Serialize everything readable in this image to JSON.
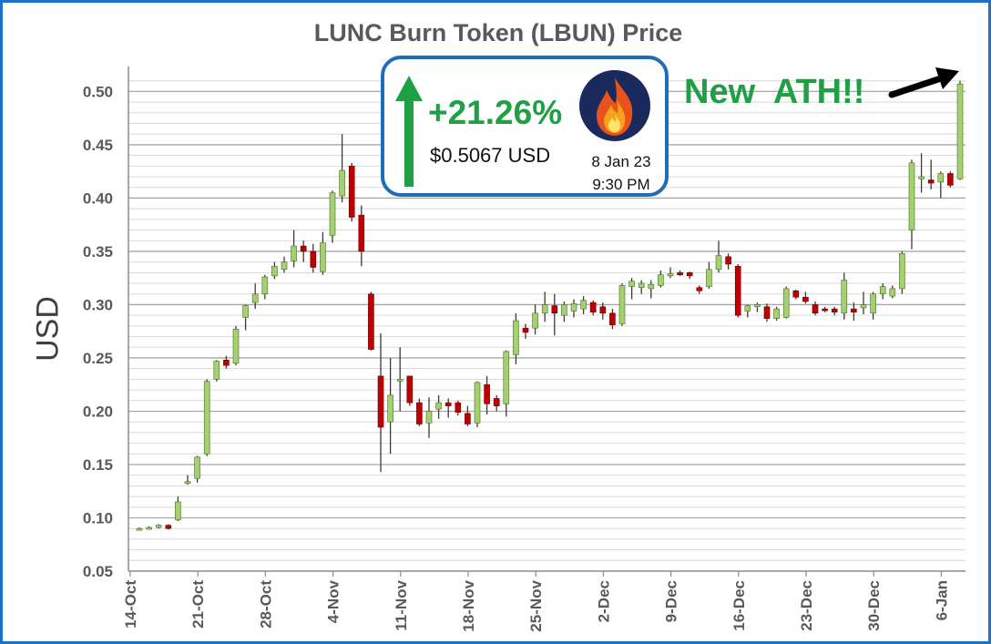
{
  "chart_data": {
    "type": "candlestick",
    "title": "LUNC Burn Token (LBUN) Price",
    "xlabel": "",
    "ylabel": "USD",
    "ylim": [
      0.05,
      0.52
    ],
    "grid": true,
    "yticks": [
      "0.05",
      "0.10",
      "0.15",
      "0.20",
      "0.25",
      "0.30",
      "0.35",
      "0.40",
      "0.45",
      "0.50"
    ],
    "xticks": [
      "14-Oct",
      "21-Oct",
      "28-Oct",
      "4-Nov",
      "11-Nov",
      "18-Nov",
      "25-Nov",
      "2-Dec",
      "9-Dec",
      "16-Dec",
      "23-Dec",
      "30-Dec",
      "6-Jan"
    ],
    "colors": {
      "up": "#a3d16e",
      "down": "#c00000",
      "wick": "#3a3a3a",
      "grid": "#c8c8c8"
    },
    "candles": [
      {
        "date": "15-Oct",
        "open": 0.09,
        "high": 0.091,
        "low": 0.089,
        "close": 0.09
      },
      {
        "date": "16-Oct",
        "open": 0.09,
        "high": 0.092,
        "low": 0.089,
        "close": 0.091
      },
      {
        "date": "17-Oct",
        "open": 0.091,
        "high": 0.094,
        "low": 0.09,
        "close": 0.093
      },
      {
        "date": "18-Oct",
        "open": 0.093,
        "high": 0.094,
        "low": 0.089,
        "close": 0.09
      },
      {
        "date": "19-Oct",
        "open": 0.098,
        "high": 0.12,
        "low": 0.097,
        "close": 0.115
      },
      {
        "date": "20-Oct",
        "open": 0.133,
        "high": 0.14,
        "low": 0.131,
        "close": 0.134
      },
      {
        "date": "21-Oct",
        "open": 0.137,
        "high": 0.158,
        "low": 0.133,
        "close": 0.157
      },
      {
        "date": "22-Oct",
        "open": 0.16,
        "high": 0.23,
        "low": 0.158,
        "close": 0.228
      },
      {
        "date": "23-Oct",
        "open": 0.23,
        "high": 0.248,
        "low": 0.228,
        "close": 0.247
      },
      {
        "date": "24-Oct",
        "open": 0.248,
        "high": 0.252,
        "low": 0.24,
        "close": 0.243
      },
      {
        "date": "25-Oct",
        "open": 0.245,
        "high": 0.28,
        "low": 0.243,
        "close": 0.277
      },
      {
        "date": "26-Oct",
        "open": 0.288,
        "high": 0.3,
        "low": 0.276,
        "close": 0.299
      },
      {
        "date": "27-Oct",
        "open": 0.302,
        "high": 0.32,
        "low": 0.296,
        "close": 0.31
      },
      {
        "date": "28-Oct",
        "open": 0.31,
        "high": 0.328,
        "low": 0.305,
        "close": 0.326
      },
      {
        "date": "29-Oct",
        "open": 0.327,
        "high": 0.34,
        "low": 0.324,
        "close": 0.336
      },
      {
        "date": "30-Oct",
        "open": 0.333,
        "high": 0.345,
        "low": 0.33,
        "close": 0.34
      },
      {
        "date": "31-Oct",
        "open": 0.341,
        "high": 0.37,
        "low": 0.335,
        "close": 0.355
      },
      {
        "date": "1-Nov",
        "open": 0.355,
        "high": 0.36,
        "low": 0.34,
        "close": 0.35
      },
      {
        "date": "2-Nov",
        "open": 0.35,
        "high": 0.357,
        "low": 0.33,
        "close": 0.335
      },
      {
        "date": "3-Nov",
        "open": 0.331,
        "high": 0.368,
        "low": 0.328,
        "close": 0.358
      },
      {
        "date": "4-Nov",
        "open": 0.365,
        "high": 0.407,
        "low": 0.358,
        "close": 0.405
      },
      {
        "date": "5-Nov",
        "open": 0.402,
        "high": 0.46,
        "low": 0.396,
        "close": 0.426
      },
      {
        "date": "6-Nov",
        "open": 0.43,
        "high": 0.433,
        "low": 0.378,
        "close": 0.382
      },
      {
        "date": "7-Nov",
        "open": 0.384,
        "high": 0.393,
        "low": 0.336,
        "close": 0.35
      },
      {
        "date": "8-Nov",
        "open": 0.31,
        "high": 0.312,
        "low": 0.257,
        "close": 0.258
      },
      {
        "date": "9-Nov",
        "open": 0.233,
        "high": 0.273,
        "low": 0.143,
        "close": 0.185
      },
      {
        "date": "10-Nov",
        "open": 0.19,
        "high": 0.25,
        "low": 0.16,
        "close": 0.215
      },
      {
        "date": "11-Nov",
        "open": 0.229,
        "high": 0.26,
        "low": 0.2,
        "close": 0.23
      },
      {
        "date": "12-Nov",
        "open": 0.233,
        "high": 0.233,
        "low": 0.205,
        "close": 0.208
      },
      {
        "date": "13-Nov",
        "open": 0.208,
        "high": 0.212,
        "low": 0.186,
        "close": 0.188
      },
      {
        "date": "14-Nov",
        "open": 0.189,
        "high": 0.213,
        "low": 0.175,
        "close": 0.2
      },
      {
        "date": "15-Nov",
        "open": 0.202,
        "high": 0.215,
        "low": 0.193,
        "close": 0.208
      },
      {
        "date": "16-Nov",
        "open": 0.208,
        "high": 0.212,
        "low": 0.194,
        "close": 0.205
      },
      {
        "date": "17-Nov",
        "open": 0.208,
        "high": 0.21,
        "low": 0.196,
        "close": 0.199
      },
      {
        "date": "18-Nov",
        "open": 0.198,
        "high": 0.205,
        "low": 0.186,
        "close": 0.188
      },
      {
        "date": "19-Nov",
        "open": 0.189,
        "high": 0.228,
        "low": 0.185,
        "close": 0.227
      },
      {
        "date": "20-Nov",
        "open": 0.225,
        "high": 0.233,
        "low": 0.197,
        "close": 0.207
      },
      {
        "date": "21-Nov",
        "open": 0.212,
        "high": 0.215,
        "low": 0.2,
        "close": 0.205
      },
      {
        "date": "22-Nov",
        "open": 0.207,
        "high": 0.257,
        "low": 0.195,
        "close": 0.256
      },
      {
        "date": "23-Nov",
        "open": 0.253,
        "high": 0.292,
        "low": 0.244,
        "close": 0.285
      },
      {
        "date": "24-Nov",
        "open": 0.278,
        "high": 0.282,
        "low": 0.268,
        "close": 0.274
      },
      {
        "date": "25-Nov",
        "open": 0.278,
        "high": 0.3,
        "low": 0.272,
        "close": 0.292
      },
      {
        "date": "26-Nov",
        "open": 0.292,
        "high": 0.312,
        "low": 0.284,
        "close": 0.3
      },
      {
        "date": "27-Nov",
        "open": 0.299,
        "high": 0.31,
        "low": 0.271,
        "close": 0.292
      },
      {
        "date": "28-Nov",
        "open": 0.29,
        "high": 0.303,
        "low": 0.284,
        "close": 0.3
      },
      {
        "date": "29-Nov",
        "open": 0.294,
        "high": 0.305,
        "low": 0.288,
        "close": 0.301
      },
      {
        "date": "30-Nov",
        "open": 0.296,
        "high": 0.308,
        "low": 0.291,
        "close": 0.304
      },
      {
        "date": "1-Dec",
        "open": 0.302,
        "high": 0.304,
        "low": 0.29,
        "close": 0.293
      },
      {
        "date": "2-Dec",
        "open": 0.298,
        "high": 0.302,
        "low": 0.286,
        "close": 0.292
      },
      {
        "date": "3-Dec",
        "open": 0.292,
        "high": 0.296,
        "low": 0.277,
        "close": 0.281
      },
      {
        "date": "4-Dec",
        "open": 0.282,
        "high": 0.32,
        "low": 0.28,
        "close": 0.318
      },
      {
        "date": "5-Dec",
        "open": 0.317,
        "high": 0.325,
        "low": 0.305,
        "close": 0.322
      },
      {
        "date": "6-Dec",
        "open": 0.316,
        "high": 0.323,
        "low": 0.31,
        "close": 0.32
      },
      {
        "date": "7-Dec",
        "open": 0.315,
        "high": 0.323,
        "low": 0.306,
        "close": 0.319
      },
      {
        "date": "8-Dec",
        "open": 0.318,
        "high": 0.332,
        "low": 0.316,
        "close": 0.328
      },
      {
        "date": "9-Dec",
        "open": 0.327,
        "high": 0.335,
        "low": 0.325,
        "close": 0.329
      },
      {
        "date": "10-Dec",
        "open": 0.33,
        "high": 0.332,
        "low": 0.327,
        "close": 0.328
      },
      {
        "date": "11-Dec",
        "open": 0.33,
        "high": 0.331,
        "low": 0.324,
        "close": 0.327
      },
      {
        "date": "12-Dec",
        "open": 0.316,
        "high": 0.318,
        "low": 0.31,
        "close": 0.313
      },
      {
        "date": "13-Dec",
        "open": 0.317,
        "high": 0.34,
        "low": 0.315,
        "close": 0.333
      },
      {
        "date": "14-Dec",
        "open": 0.333,
        "high": 0.36,
        "low": 0.33,
        "close": 0.346
      },
      {
        "date": "15-Dec",
        "open": 0.345,
        "high": 0.348,
        "low": 0.333,
        "close": 0.338
      },
      {
        "date": "16-Dec",
        "open": 0.336,
        "high": 0.338,
        "low": 0.288,
        "close": 0.29
      },
      {
        "date": "17-Dec",
        "open": 0.294,
        "high": 0.3,
        "low": 0.288,
        "close": 0.299
      },
      {
        "date": "18-Dec",
        "open": 0.298,
        "high": 0.302,
        "low": 0.293,
        "close": 0.3
      },
      {
        "date": "19-Dec",
        "open": 0.298,
        "high": 0.301,
        "low": 0.284,
        "close": 0.287
      },
      {
        "date": "20-Dec",
        "open": 0.287,
        "high": 0.298,
        "low": 0.285,
        "close": 0.296
      },
      {
        "date": "21-Dec",
        "open": 0.288,
        "high": 0.317,
        "low": 0.287,
        "close": 0.315
      },
      {
        "date": "22-Dec",
        "open": 0.313,
        "high": 0.314,
        "low": 0.305,
        "close": 0.307
      },
      {
        "date": "23-Dec",
        "open": 0.307,
        "high": 0.312,
        "low": 0.301,
        "close": 0.303
      },
      {
        "date": "24-Dec",
        "open": 0.3,
        "high": 0.303,
        "low": 0.29,
        "close": 0.292
      },
      {
        "date": "25-Dec",
        "open": 0.296,
        "high": 0.298,
        "low": 0.293,
        "close": 0.295
      },
      {
        "date": "26-Dec",
        "open": 0.296,
        "high": 0.298,
        "low": 0.29,
        "close": 0.293
      },
      {
        "date": "27-Dec",
        "open": 0.292,
        "high": 0.33,
        "low": 0.286,
        "close": 0.323
      },
      {
        "date": "28-Dec",
        "open": 0.296,
        "high": 0.302,
        "low": 0.285,
        "close": 0.293
      },
      {
        "date": "29-Dec",
        "open": 0.297,
        "high": 0.312,
        "low": 0.291,
        "close": 0.3
      },
      {
        "date": "30-Dec",
        "open": 0.292,
        "high": 0.312,
        "low": 0.286,
        "close": 0.31
      },
      {
        "date": "31-Dec",
        "open": 0.31,
        "high": 0.32,
        "low": 0.305,
        "close": 0.317
      },
      {
        "date": "1-Jan",
        "open": 0.308,
        "high": 0.318,
        "low": 0.306,
        "close": 0.315
      },
      {
        "date": "2-Jan",
        "open": 0.315,
        "high": 0.35,
        "low": 0.31,
        "close": 0.348
      },
      {
        "date": "3-Jan",
        "open": 0.37,
        "high": 0.436,
        "low": 0.352,
        "close": 0.433
      },
      {
        "date": "4-Jan",
        "open": 0.418,
        "high": 0.442,
        "low": 0.405,
        "close": 0.42
      },
      {
        "date": "5-Jan",
        "open": 0.417,
        "high": 0.436,
        "low": 0.408,
        "close": 0.414
      },
      {
        "date": "6-Jan",
        "open": 0.415,
        "high": 0.425,
        "low": 0.4,
        "close": 0.423
      },
      {
        "date": "7-Jan",
        "open": 0.423,
        "high": 0.425,
        "low": 0.41,
        "close": 0.412
      },
      {
        "date": "8-Jan",
        "open": 0.418,
        "high": 0.51,
        "low": 0.417,
        "close": 0.507
      }
    ]
  },
  "callout": {
    "change": "+21.26%",
    "price": "$0.5067 USD",
    "date": "8 Jan 23",
    "time": "9:30 PM",
    "arrow_icon": "green-up-arrow-icon",
    "fire_icon": "fire-icon"
  },
  "annotation": {
    "text": "New  ATH!!",
    "arrow_icon": "black-arrow-icon"
  }
}
